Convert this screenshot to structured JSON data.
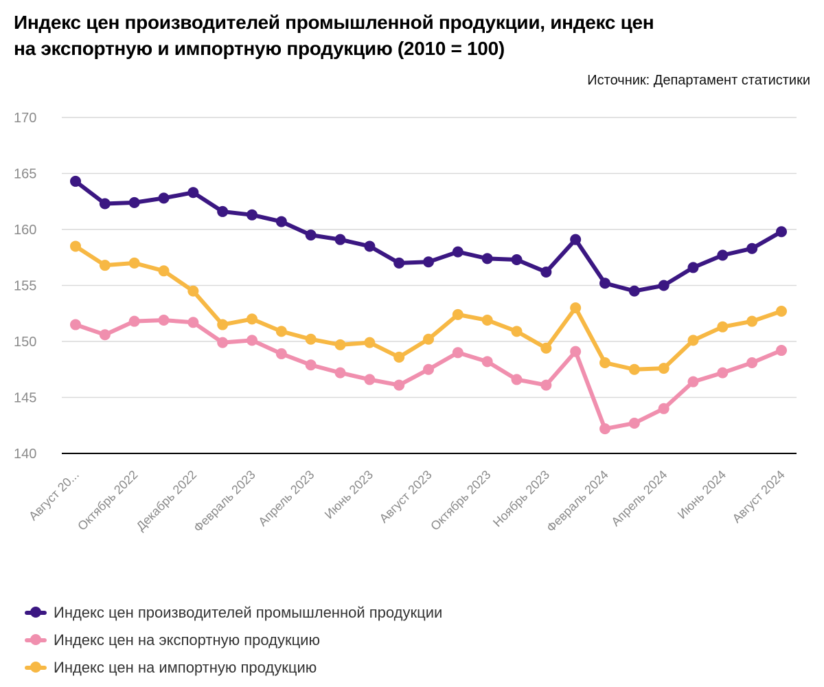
{
  "header": {
    "title_line1": "Индекс цен производителей промышленной продукции, индекс цен",
    "title_line2": "на экспортную и импортную продукцию (2010 = 100)",
    "source": "Источник: Департамент статистики"
  },
  "chart_data": {
    "type": "line",
    "title": "Индекс цен производителей промышленной продукции, индекс цен на экспортную и импортную продукцию (2010 = 100)",
    "xlabel": "",
    "ylabel": "",
    "ylim": [
      140,
      170
    ],
    "yticks": [
      140,
      145,
      150,
      155,
      160,
      165,
      170
    ],
    "grid": true,
    "legend_position": "bottom-left",
    "x_tick_labels": [
      "Август 20...",
      "",
      "Октябрь 2022",
      "",
      "Декабрь 2022",
      "",
      "Февраль 2023",
      "",
      "Апрель 2023",
      "",
      "Июнь 2023",
      "",
      "Август 2023",
      "",
      "Октябрь 2023",
      "",
      "Ноябрь 2023",
      "",
      "Февраль 2024",
      "",
      "Апрель 2024",
      "",
      "Июнь 2024",
      "",
      "Август 2024"
    ],
    "series": [
      {
        "name": "Индекс цен производителей промышленной продукции",
        "color": "#3b1782",
        "values": [
          164.3,
          162.3,
          162.4,
          162.8,
          163.3,
          161.6,
          161.3,
          160.7,
          159.5,
          159.1,
          158.5,
          157.0,
          157.1,
          158.0,
          157.4,
          157.3,
          156.2,
          159.1,
          155.2,
          154.5,
          155.0,
          156.6,
          157.7,
          158.3,
          159.8
        ]
      },
      {
        "name": "Индекс цен на экспортную продукцию",
        "color": "#f08fae",
        "values": [
          151.5,
          150.6,
          151.8,
          151.9,
          151.7,
          149.9,
          150.1,
          148.9,
          147.9,
          147.2,
          146.6,
          146.1,
          147.5,
          149.0,
          148.2,
          146.6,
          146.1,
          149.1,
          142.2,
          142.7,
          144.0,
          146.4,
          147.2,
          148.1,
          149.2
        ]
      },
      {
        "name": "Индекс цен на импортную продукцию",
        "color": "#f7b844",
        "values": [
          158.5,
          156.8,
          157.0,
          156.3,
          154.5,
          151.5,
          152.0,
          150.9,
          150.2,
          149.7,
          149.9,
          148.6,
          150.2,
          152.4,
          151.9,
          150.9,
          149.4,
          153.0,
          148.1,
          147.5,
          147.6,
          150.1,
          151.3,
          151.8,
          152.7
        ]
      }
    ]
  }
}
